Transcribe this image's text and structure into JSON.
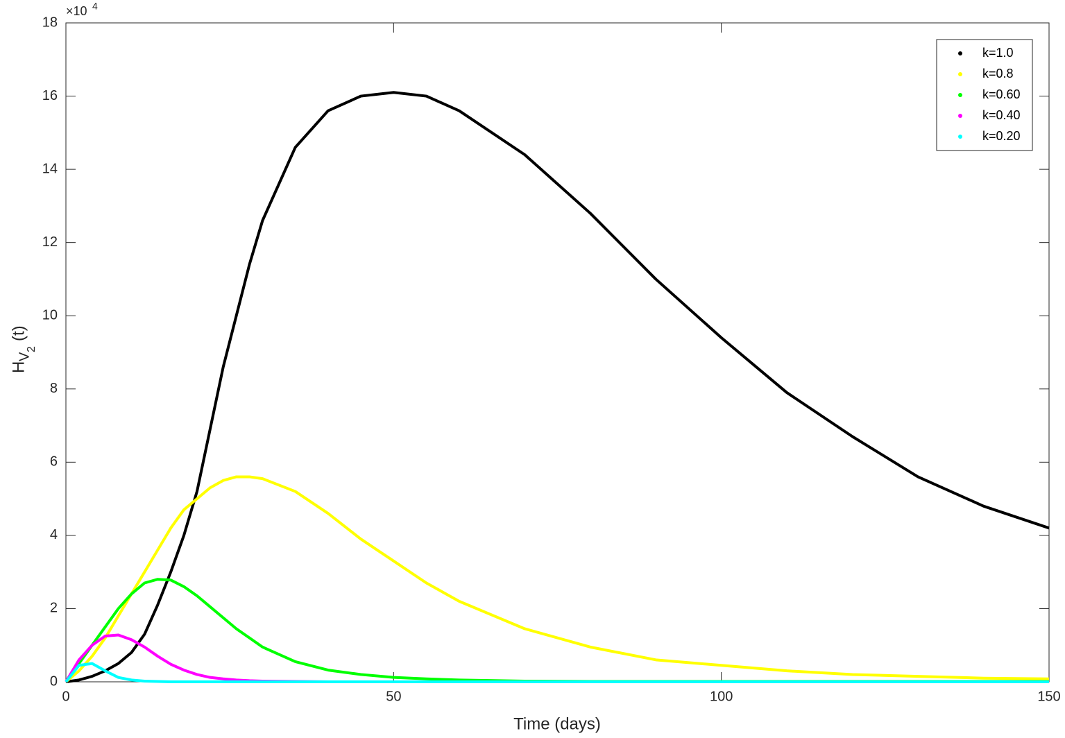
{
  "chart_data": {
    "type": "line",
    "xlabel": "Time (days)",
    "ylabel": [
      "H",
      "V",
      "2",
      "(t)"
    ],
    "y_multiplier": {
      "base": "×10",
      "exponent": "4"
    },
    "x": [
      0,
      2,
      4,
      6,
      8,
      10,
      12,
      14,
      16,
      18,
      20,
      22,
      24,
      26,
      28,
      30,
      35,
      40,
      45,
      50,
      55,
      60,
      70,
      80,
      90,
      100,
      110,
      120,
      130,
      140,
      150
    ],
    "series": [
      {
        "name": "k=1.0",
        "color": "#000000",
        "values": [
          0,
          0.05,
          0.15,
          0.3,
          0.5,
          0.8,
          1.3,
          2.1,
          3.0,
          4.0,
          5.2,
          6.9,
          8.6,
          10.0,
          11.4,
          12.6,
          14.6,
          15.6,
          16.0,
          16.1,
          16.0,
          15.6,
          14.4,
          12.8,
          11.0,
          9.4,
          7.9,
          6.7,
          5.6,
          4.8,
          4.2
        ]
      },
      {
        "name": "k=0.8",
        "color": "#ffff00",
        "values": [
          0,
          0.3,
          0.7,
          1.2,
          1.8,
          2.4,
          3.0,
          3.6,
          4.2,
          4.7,
          5.0,
          5.3,
          5.5,
          5.6,
          5.6,
          5.55,
          5.2,
          4.6,
          3.9,
          3.3,
          2.7,
          2.2,
          1.45,
          0.95,
          0.6,
          0.45,
          0.3,
          0.2,
          0.15,
          0.1,
          0.08
        ]
      },
      {
        "name": "k=0.60",
        "color": "#00ff00",
        "values": [
          0,
          0.5,
          1.0,
          1.5,
          2.0,
          2.4,
          2.7,
          2.8,
          2.78,
          2.6,
          2.35,
          2.05,
          1.75,
          1.45,
          1.2,
          0.95,
          0.55,
          0.32,
          0.2,
          0.12,
          0.08,
          0.05,
          0.02,
          0.01,
          0.01,
          0.01,
          0.01,
          0.01,
          0.01,
          0.01,
          0.01
        ]
      },
      {
        "name": "k=0.40",
        "color": "#ff00ff",
        "values": [
          0,
          0.6,
          1.0,
          1.25,
          1.28,
          1.15,
          0.95,
          0.7,
          0.48,
          0.32,
          0.2,
          0.12,
          0.08,
          0.05,
          0.03,
          0.02,
          0.01,
          0,
          0,
          0,
          0,
          0,
          0,
          0,
          0,
          0,
          0,
          0,
          0,
          0,
          0
        ]
      },
      {
        "name": "k=0.20",
        "color": "#00ffff",
        "values": [
          0,
          0.45,
          0.5,
          0.3,
          0.12,
          0.05,
          0.02,
          0.01,
          0,
          0,
          0,
          0,
          0,
          0,
          0,
          0,
          0,
          0,
          0,
          0,
          0,
          0,
          0,
          0,
          0,
          0,
          0,
          0,
          0,
          0,
          0
        ]
      }
    ],
    "xlim": [
      0,
      150
    ],
    "xticks": [
      0,
      50,
      100,
      150
    ],
    "ylim": [
      0,
      18
    ],
    "yticks": [
      0,
      2,
      4,
      6,
      8,
      10,
      12,
      14,
      16,
      18
    ],
    "legend": "upper right",
    "grid": false
  }
}
